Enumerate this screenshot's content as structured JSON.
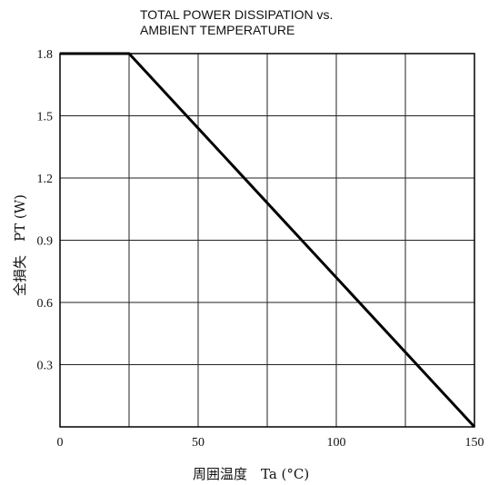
{
  "chart_data": {
    "type": "line",
    "title_line1": "TOTAL POWER DISSIPATION vs.",
    "title_line2": "AMBIENT TEMPERATURE",
    "xlabel": "周囲温度　Ta (°C)",
    "ylabel": "全損失　PT (W)",
    "xlim": [
      0,
      150
    ],
    "ylim": [
      0,
      1.8
    ],
    "x_ticks": [
      0,
      50,
      100,
      150
    ],
    "x_tick_labels": [
      "0",
      "50",
      "100",
      "150"
    ],
    "y_ticks": [
      0.3,
      0.6,
      0.9,
      1.2,
      1.5,
      1.8
    ],
    "y_tick_labels": [
      "0.3",
      "0.6",
      "0.9",
      "1.2",
      "1.5",
      "1.8"
    ],
    "x_gridlines": [
      25,
      50,
      75,
      100,
      125
    ],
    "y_gridlines": [
      0.3,
      0.6,
      0.9,
      1.2,
      1.5
    ],
    "grid": true,
    "series": [
      {
        "x": [
          0,
          25,
          150
        ],
        "y": [
          1.8,
          1.8,
          0
        ]
      }
    ]
  }
}
